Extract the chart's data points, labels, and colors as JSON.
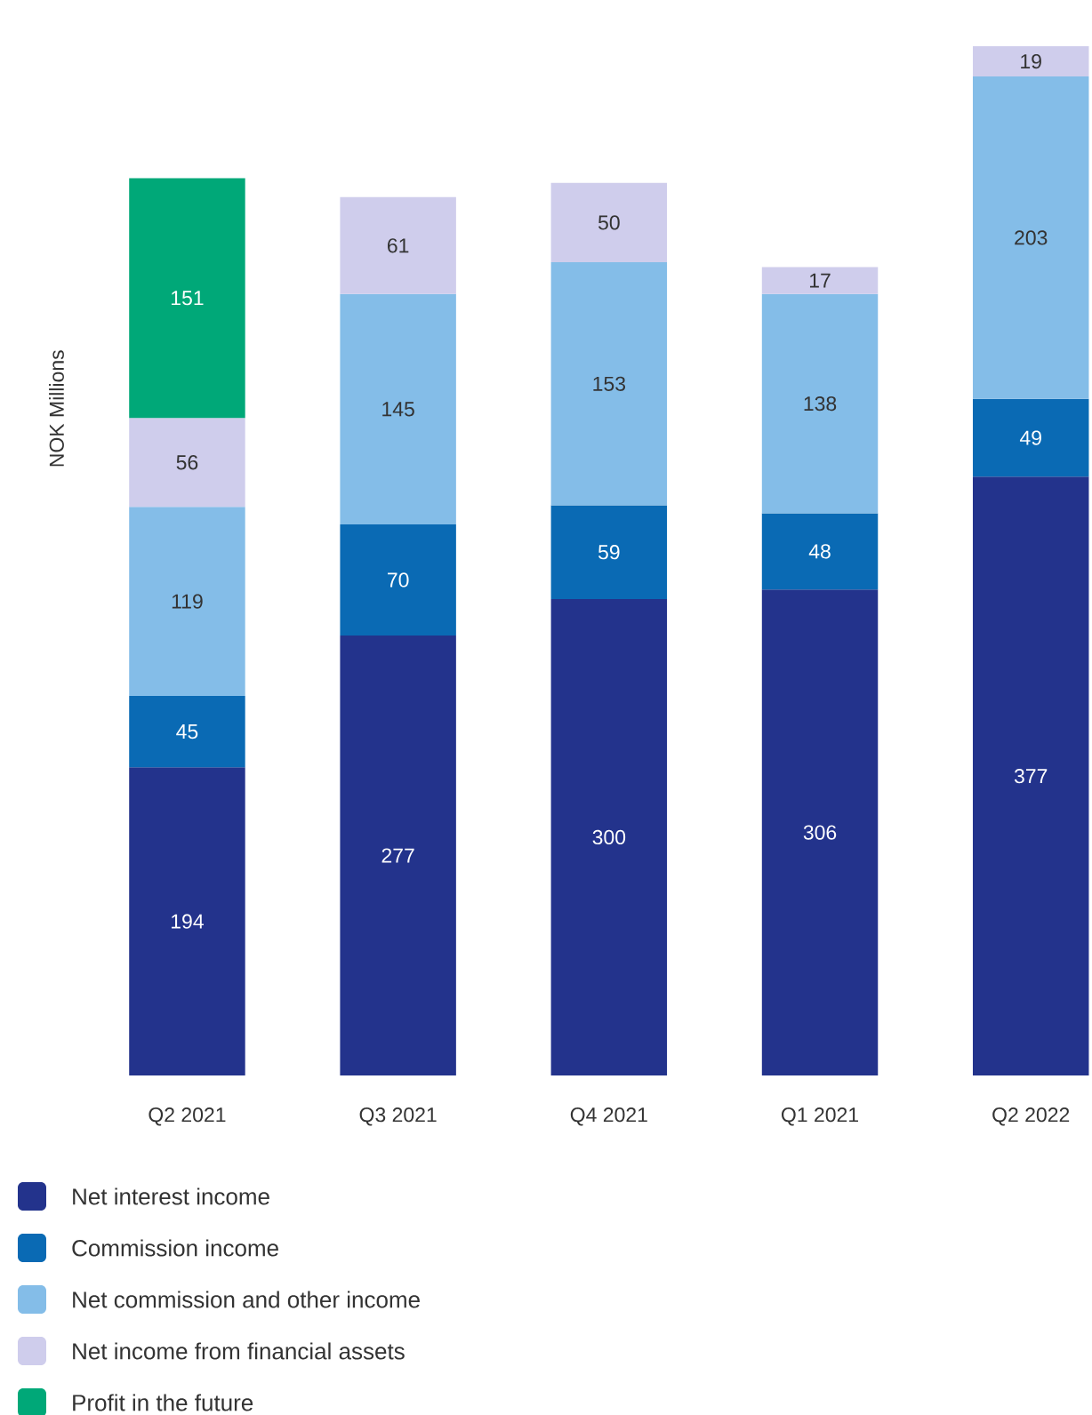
{
  "chart_data": {
    "type": "bar",
    "stacked": true,
    "data_labels": true,
    "ylabel": "NOK Millions",
    "legend": "bottom",
    "categories": [
      "Q2 2021",
      "Q3 2021",
      "Q4 2021",
      "Q1 2021",
      "Q2 2022"
    ],
    "series": [
      {
        "name": "Net interest income",
        "color": "#23338c",
        "values": [
          194,
          277,
          300,
          306,
          377
        ]
      },
      {
        "name": "Commission income",
        "color": "#0a6ab4",
        "values": [
          45,
          70,
          59,
          48,
          49
        ]
      },
      {
        "name": "Net commission and other income",
        "color": "#84bde8",
        "values": [
          119,
          145,
          153,
          138,
          203
        ]
      },
      {
        "name": "Net income from financial assets",
        "color": "#cfcdec",
        "values": [
          56,
          61,
          50,
          17,
          19
        ]
      },
      {
        "name": "Profit in the future",
        "color": "#00a878",
        "values": [
          151,
          null,
          null,
          null,
          null
        ]
      }
    ]
  }
}
